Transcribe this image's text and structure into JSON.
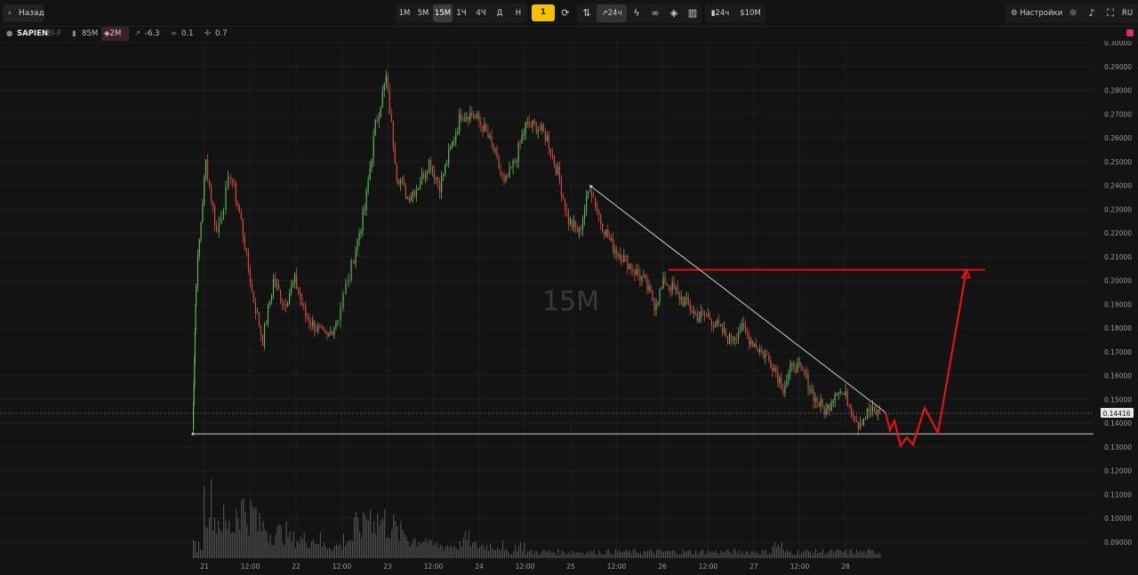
{
  "toolbar": {
    "back_label": "Назад",
    "timeframes": [
      "1М",
      "5М",
      "15М",
      "1Ч",
      "4Ч",
      "Д",
      "Н"
    ],
    "active_timeframe": "15М",
    "layout_label": "1",
    "trend_label": "24ч",
    "stats_period_label": "24ч",
    "volume_filter_label": "$10M",
    "settings_label": "Настройки",
    "language_label": "RU",
    "icons": [
      "chevron-left-icon",
      "refresh-icon",
      "sort-icon",
      "trend-icon",
      "lightning-icon",
      "link-icon",
      "shield-icon",
      "bar-chart-icon",
      "bars-icon",
      "settings-icon",
      "sun-icon",
      "sound-icon",
      "fullscreen-icon"
    ]
  },
  "info": {
    "ticker": "SAPIEN",
    "market": "BI-F",
    "volume_label": "85M",
    "shield_label": "2M",
    "change_label": "-6.3",
    "link_value": "0.1",
    "pin_value": "0.7"
  },
  "colors": {
    "up": "#5fb65a",
    "down": "#d04a42",
    "drawing": "#e01515",
    "trendline": "#cfcfcf",
    "accent": "#f4c000",
    "record": "#e0315c"
  },
  "chart_data": {
    "type": "candlestick",
    "watermark": "15M",
    "current_price_label": "0.14416",
    "current_price": 0.14416,
    "y_ticks": [
      "0.30000",
      "0.29000",
      "0.28000",
      "0.27000",
      "0.26000",
      "0.25000",
      "0.24000",
      "0.23000",
      "0.22000",
      "0.21000",
      "0.20000",
      "0.19000",
      "0.18000",
      "0.17000",
      "0.16000",
      "0.15000",
      "0.14000",
      "0.13000",
      "0.12000",
      "0.11000",
      "0.10000",
      "0.09000"
    ],
    "ylim": [
      0.085,
      0.3
    ],
    "x_ticks": [
      "21",
      "12:00",
      "22",
      "12:00",
      "23",
      "12:00",
      "24",
      "12:00",
      "25",
      "12:00",
      "26",
      "12:00",
      "27",
      "12:00",
      "28"
    ],
    "price_path": [
      [
        0,
        0.137
      ],
      [
        0.3,
        0.2
      ],
      [
        1.2,
        0.25
      ],
      [
        2.2,
        0.22
      ],
      [
        3.5,
        0.245
      ],
      [
        4.5,
        0.225
      ],
      [
        5.5,
        0.195
      ],
      [
        6.5,
        0.175
      ],
      [
        7.5,
        0.2
      ],
      [
        8.5,
        0.19
      ],
      [
        9.5,
        0.2
      ],
      [
        10.5,
        0.185
      ],
      [
        11.5,
        0.18
      ],
      [
        12.5,
        0.175
      ],
      [
        13.5,
        0.185
      ],
      [
        15,
        0.21
      ],
      [
        16,
        0.23
      ],
      [
        17,
        0.265
      ],
      [
        18,
        0.285
      ],
      [
        19,
        0.245
      ],
      [
        20,
        0.235
      ],
      [
        21,
        0.24
      ],
      [
        22,
        0.25
      ],
      [
        23,
        0.24
      ],
      [
        24,
        0.255
      ],
      [
        25,
        0.27
      ],
      [
        26,
        0.27
      ],
      [
        27,
        0.265
      ],
      [
        28,
        0.255
      ],
      [
        29,
        0.24
      ],
      [
        30,
        0.25
      ],
      [
        31,
        0.265
      ],
      [
        32,
        0.265
      ],
      [
        33,
        0.26
      ],
      [
        34,
        0.245
      ],
      [
        35,
        0.225
      ],
      [
        36,
        0.22
      ],
      [
        37,
        0.24
      ],
      [
        38,
        0.225
      ],
      [
        39,
        0.215
      ],
      [
        40,
        0.21
      ],
      [
        41,
        0.205
      ],
      [
        42,
        0.2
      ],
      [
        43,
        0.19
      ],
      [
        44,
        0.2
      ],
      [
        45,
        0.195
      ],
      [
        46,
        0.19
      ],
      [
        47,
        0.185
      ],
      [
        48,
        0.185
      ],
      [
        49,
        0.18
      ],
      [
        50,
        0.175
      ],
      [
        51,
        0.18
      ],
      [
        52,
        0.175
      ],
      [
        53,
        0.17
      ],
      [
        54,
        0.165
      ],
      [
        55,
        0.155
      ],
      [
        56,
        0.165
      ],
      [
        57,
        0.16
      ],
      [
        58,
        0.15
      ],
      [
        59,
        0.145
      ],
      [
        60,
        0.155
      ],
      [
        61,
        0.15
      ],
      [
        62,
        0.14
      ],
      [
        63,
        0.145
      ],
      [
        64,
        0.14416
      ]
    ],
    "volume": [
      2,
      9,
      6,
      5,
      8,
      7,
      5,
      4,
      4,
      3,
      3,
      3,
      2,
      2,
      3,
      5,
      7,
      6,
      5,
      4,
      3,
      3,
      2,
      2,
      2,
      3,
      2,
      2,
      2,
      1,
      2,
      1,
      1,
      1,
      1,
      1,
      1,
      1,
      1,
      1,
      1,
      1,
      1,
      1,
      1,
      1,
      1,
      1,
      1,
      1,
      1,
      1,
      1,
      1,
      2,
      1,
      1,
      1,
      1,
      1,
      1,
      1,
      1,
      1,
      1
    ],
    "drawings": {
      "support_line": 0.1355,
      "resistance_line": 0.2045,
      "trendline": {
        "from": [
          24.6,
          0.2395
        ],
        "to": [
          28.5,
          0.1445
        ]
      },
      "forecast_path": [
        [
          28.5,
          0.1445
        ],
        [
          28.55,
          0.137
        ],
        [
          28.6,
          0.141
        ],
        [
          28.65,
          0.1305
        ],
        [
          28.7,
          0.134
        ],
        [
          28.75,
          0.131
        ],
        [
          28.85,
          0.1465
        ],
        [
          28.95,
          0.136
        ],
        [
          29.3,
          0.2045
        ]
      ]
    }
  }
}
